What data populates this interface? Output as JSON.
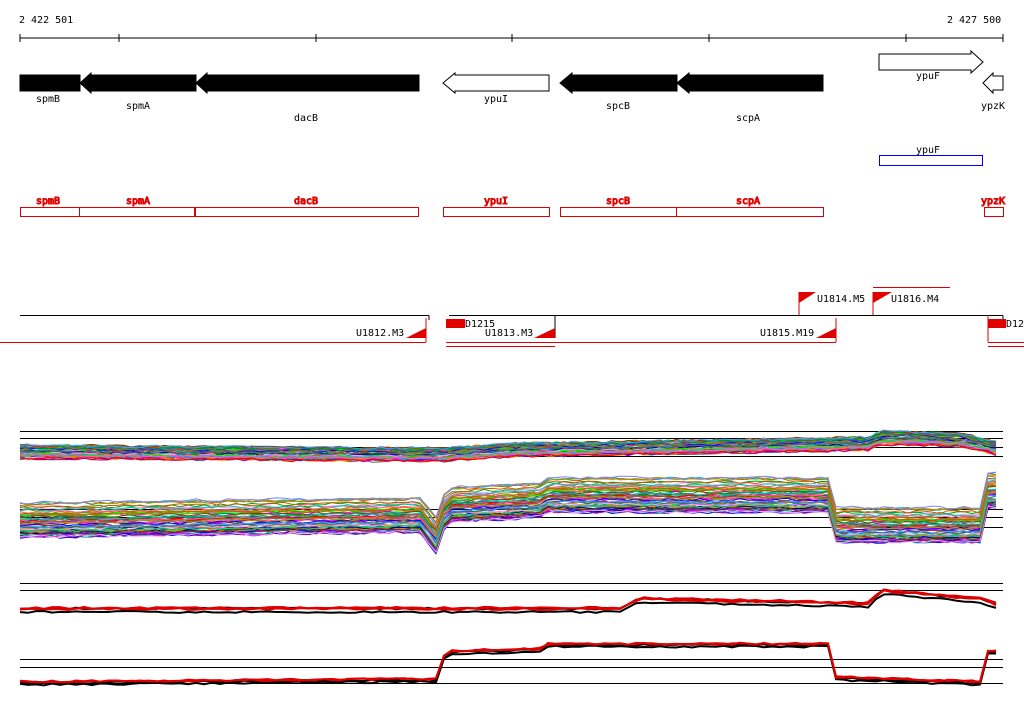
{
  "ruler": {
    "start_label": "2 422 501",
    "end_label": "2 427 500"
  },
  "genes": [
    {
      "label": "spmB",
      "strand": "-",
      "fill": "#000000"
    },
    {
      "label": "spmA",
      "strand": "-",
      "fill": "#000000"
    },
    {
      "label": "dacB",
      "strand": "-",
      "fill": "#000000"
    },
    {
      "label": "ypuI",
      "strand": "-",
      "fill": "#ffffff"
    },
    {
      "label": "spcB",
      "strand": "-",
      "fill": "#000000"
    },
    {
      "label": "scpA",
      "strand": "-",
      "fill": "#000000"
    },
    {
      "label": "ypuF",
      "strand": "+",
      "fill": "#ffffff"
    },
    {
      "label": "ypzK",
      "strand": "-",
      "fill": "#ffffff"
    }
  ],
  "blue_features": [
    {
      "label": "ypuF",
      "color": "#0000ff"
    }
  ],
  "red_features": [
    {
      "label": "spmB"
    },
    {
      "label": "spmA"
    },
    {
      "label": "dacB"
    },
    {
      "label": "ypuI"
    },
    {
      "label": "spcB"
    },
    {
      "label": "scpA"
    },
    {
      "label": "ypzK"
    }
  ],
  "transcripts": [
    {
      "label": "U1812.M3"
    },
    {
      "label": "D1215"
    },
    {
      "label": "U1813.M3"
    },
    {
      "label": "U1814.M5"
    },
    {
      "label": "U1815.M19"
    },
    {
      "label": "U1816.M4"
    },
    {
      "label": "D12"
    }
  ],
  "colors": {
    "feature_red": "#e00000",
    "blue": "#0000ff",
    "black": "#000000"
  },
  "expression_tracks": [
    "multi-condition-top",
    "multi-condition-bottom",
    "summary-top",
    "summary-bottom"
  ]
}
